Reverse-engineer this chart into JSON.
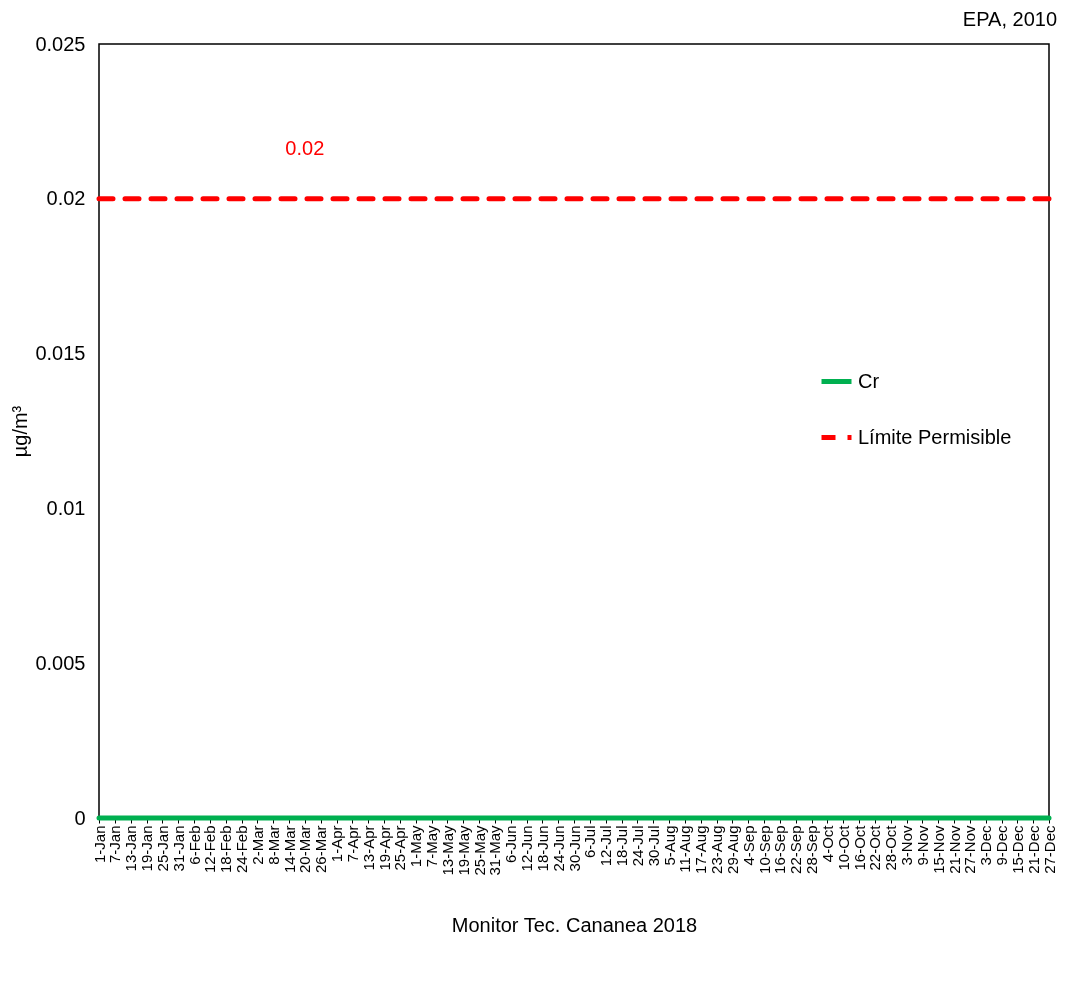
{
  "chart_data": {
    "type": "line",
    "categories": [
      "1-Jan",
      "7-Jan",
      "13-Jan",
      "19-Jan",
      "25-Jan",
      "31-Jan",
      "6-Feb",
      "12-Feb",
      "18-Feb",
      "24-Feb",
      "2-Mar",
      "8-Mar",
      "14-Mar",
      "20-Mar",
      "26-Mar",
      "1-Apr",
      "7-Apr",
      "13-Apr",
      "19-Apr",
      "25-Apr",
      "1-May",
      "7-May",
      "13-May",
      "19-May",
      "25-May",
      "31-May",
      "6-Jun",
      "12-Jun",
      "18-Jun",
      "24-Jun",
      "30-Jun",
      "6-Jul",
      "12-Jul",
      "18-Jul",
      "24-Jul",
      "30-Jul",
      "5-Aug",
      "11-Aug",
      "17-Aug",
      "23-Aug",
      "29-Aug",
      "4-Sep",
      "10-Sep",
      "16-Sep",
      "22-Sep",
      "28-Sep",
      "4-Oct",
      "10-Oct",
      "16-Oct",
      "22-Oct",
      "28-Oct",
      "3-Nov",
      "9-Nov",
      "15-Nov",
      "21-Nov",
      "27-Nov",
      "3-Dec",
      "9-Dec",
      "15-Dec",
      "21-Dec",
      "27-Dec"
    ],
    "series": [
      {
        "name": "Cr",
        "color": "#00b050",
        "line_style": "solid",
        "values": [
          0,
          0,
          0,
          0,
          0,
          0,
          0,
          0,
          0,
          0,
          0,
          0,
          0,
          0,
          0,
          0,
          0,
          0,
          0,
          0,
          0,
          0,
          0,
          0,
          0,
          0,
          0,
          0,
          0,
          0,
          0,
          0,
          0,
          0,
          0,
          0,
          0,
          0,
          0,
          0,
          0,
          0,
          0,
          0,
          0,
          0,
          0,
          0,
          0,
          0,
          0,
          0,
          0,
          0,
          0,
          0,
          0,
          0,
          0,
          0,
          0
        ]
      },
      {
        "name": "Límite Permisible",
        "color": "#ff0000",
        "line_style": "dashed",
        "values": [
          0.02,
          0.02,
          0.02,
          0.02,
          0.02,
          0.02,
          0.02,
          0.02,
          0.02,
          0.02,
          0.02,
          0.02,
          0.02,
          0.02,
          0.02,
          0.02,
          0.02,
          0.02,
          0.02,
          0.02,
          0.02,
          0.02,
          0.02,
          0.02,
          0.02,
          0.02,
          0.02,
          0.02,
          0.02,
          0.02,
          0.02,
          0.02,
          0.02,
          0.02,
          0.02,
          0.02,
          0.02,
          0.02,
          0.02,
          0.02,
          0.02,
          0.02,
          0.02,
          0.02,
          0.02,
          0.02,
          0.02,
          0.02,
          0.02,
          0.02,
          0.02,
          0.02,
          0.02,
          0.02,
          0.02,
          0.02,
          0.02,
          0.02,
          0.02,
          0.02,
          0.02
        ],
        "value_labels": [
          null,
          null,
          null,
          null,
          null,
          null,
          null,
          null,
          null,
          null,
          "0.02",
          null,
          null,
          null,
          null,
          null,
          null,
          null,
          null,
          null,
          null,
          null,
          null,
          null,
          null,
          null,
          null,
          null,
          null,
          null,
          null,
          null,
          null,
          null,
          null,
          null,
          null,
          null,
          null,
          null,
          null,
          null,
          null,
          null,
          null,
          null,
          null,
          null,
          null,
          null,
          null,
          null,
          null,
          null,
          null,
          null,
          null,
          null,
          null,
          null,
          null
        ]
      }
    ],
    "ylim": [
      0,
      0.025
    ],
    "yticks": [
      0,
      0.005,
      0.01,
      0.015,
      0.02,
      0.025
    ],
    "xlabel": "Monitor Tec. Cananea 2018",
    "ylabel": "µg/m³",
    "annotations": [
      "EPA, 2010"
    ],
    "legend": "right",
    "grid": false,
    "marker": "none"
  }
}
